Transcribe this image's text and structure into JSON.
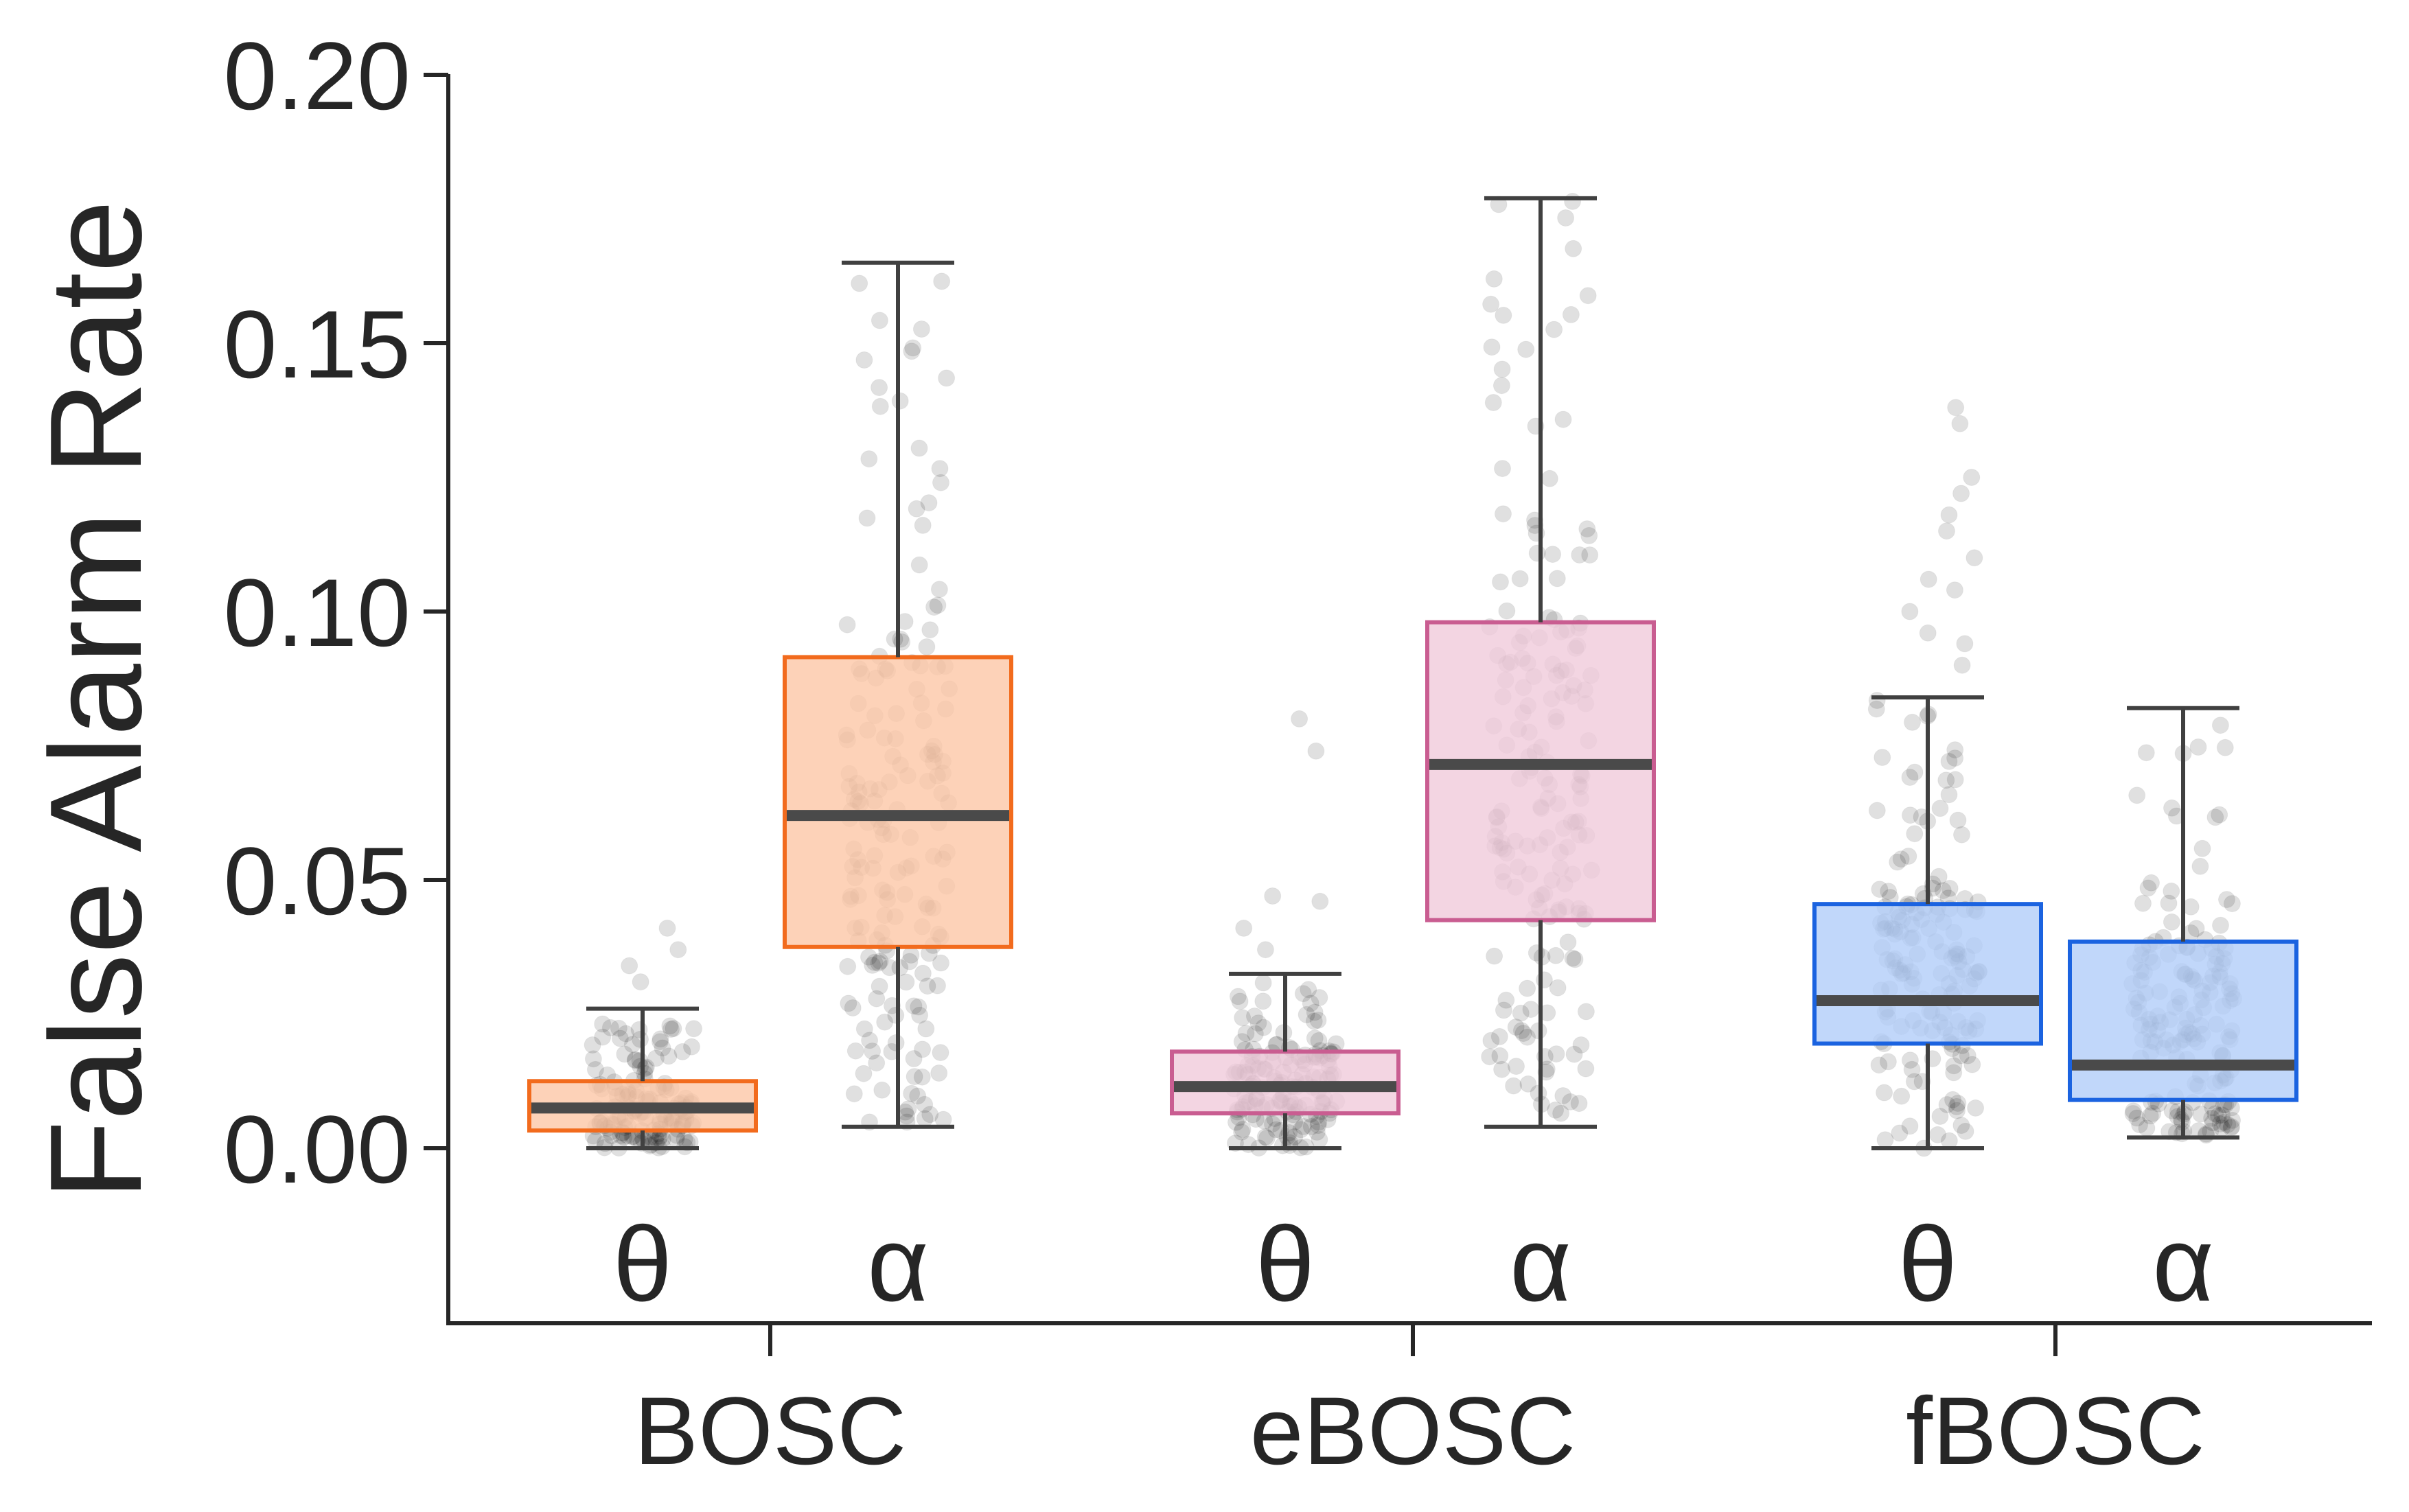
{
  "chart_data": {
    "type": "box",
    "title": "",
    "xlabel": "",
    "ylabel": "False Alarm Rate",
    "ylim": [
      -0.033,
      0.2
    ],
    "yticks": [
      "0.00",
      "0.05",
      "0.10",
      "0.15",
      "0.20"
    ],
    "ytick_values": [
      0.0,
      0.05,
      0.1,
      0.15,
      0.2
    ],
    "grid": false,
    "legend": "none",
    "categories": [
      "BOSC",
      "eBOSC",
      "fBOSC"
    ],
    "band_labels": [
      "θ",
      "α"
    ],
    "colors": {
      "BOSC": {
        "edge": "#f26b1d",
        "fill": "#fdc7a6"
      },
      "eBOSC": {
        "edge": "#c95d91",
        "fill": "#f0cadb"
      },
      "fBOSC": {
        "edge": "#1b63e0",
        "fill": "#b2cdf9"
      },
      "whisker": "#404040",
      "points": "#000000"
    },
    "groups": [
      {
        "method": "BOSC",
        "band": "θ",
        "whisker_low": 0.0,
        "q1": 0.0033,
        "median": 0.0075,
        "q3": 0.0125,
        "whisker_high": 0.026,
        "outliers": [
          0.041,
          0.037,
          0.034,
          0.031
        ],
        "n_points": 140
      },
      {
        "method": "BOSC",
        "band": "α",
        "whisker_low": 0.004,
        "q1": 0.0375,
        "median": 0.062,
        "q3": 0.0915,
        "whisker_high": 0.165,
        "outliers": [],
        "n_points": 180
      },
      {
        "method": "eBOSC",
        "band": "θ",
        "whisker_low": 0.0,
        "q1": 0.0065,
        "median": 0.0115,
        "q3": 0.018,
        "whisker_high": 0.0325,
        "outliers": [
          0.08,
          0.074,
          0.047,
          0.046,
          0.041,
          0.037
        ],
        "n_points": 150
      },
      {
        "method": "eBOSC",
        "band": "α",
        "whisker_low": 0.004,
        "q1": 0.0425,
        "median": 0.0715,
        "q3": 0.098,
        "whisker_high": 0.177,
        "outliers": [],
        "n_points": 180
      },
      {
        "method": "fBOSC",
        "band": "θ",
        "whisker_low": 0.0,
        "q1": 0.0195,
        "median": 0.0275,
        "q3": 0.0455,
        "whisker_high": 0.084,
        "outliers": [
          0.138,
          0.135,
          0.125,
          0.122,
          0.118,
          0.115,
          0.11,
          0.106,
          0.104,
          0.1,
          0.096,
          0.094,
          0.09
        ],
        "n_points": 160
      },
      {
        "method": "fBOSC",
        "band": "α",
        "whisker_low": 0.002,
        "q1": 0.009,
        "median": 0.0155,
        "q3": 0.0385,
        "whisker_high": 0.082,
        "outliers": [],
        "n_points": 170
      }
    ]
  }
}
